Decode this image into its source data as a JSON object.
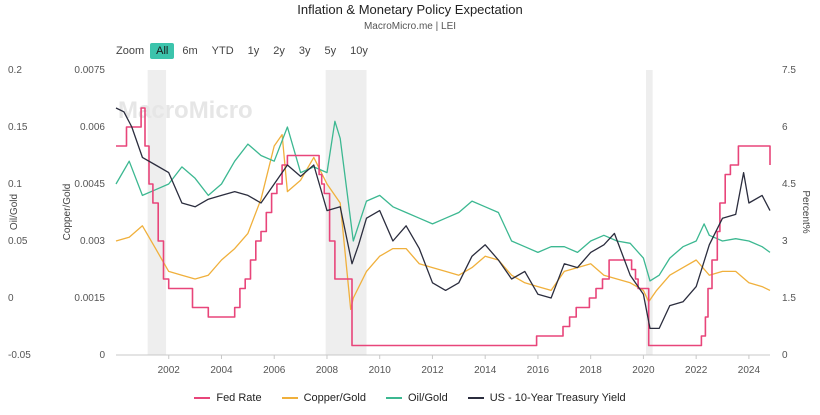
{
  "header": {
    "title": "Inflation & Monetary Policy Expectation",
    "subtitle": "MacroMicro.me | LEI"
  },
  "watermark": "MacroMicro",
  "zoom": {
    "label": "Zoom",
    "buttons": [
      "All",
      "6m",
      "YTD",
      "1y",
      "2y",
      "3y",
      "5y",
      "10y"
    ],
    "active": "All"
  },
  "colors": {
    "fed": "#e8457a",
    "copper": "#f0b03c",
    "oil": "#3cb891",
    "tsy": "#2b2d3e",
    "band": "#eeeeee",
    "accent": "#3cc4ac"
  },
  "chart_data": {
    "type": "line",
    "xlim": [
      2000.0,
      2024.8
    ],
    "x_ticks": [
      "2002",
      "2004",
      "2006",
      "2008",
      "2010",
      "2012",
      "2014",
      "2016",
      "2018",
      "2020",
      "2022",
      "2024"
    ],
    "recessions": [
      [
        2001.2,
        2001.9
      ],
      [
        2007.95,
        2009.5
      ],
      [
        2020.1,
        2020.35
      ]
    ],
    "axes": {
      "oil": {
        "label": "Oil/Gold",
        "ylim": [
          -0.05,
          0.2
        ],
        "ticks": [
          "0.2",
          "0.15",
          "0.1",
          "0.05",
          "0",
          "-0.05"
        ]
      },
      "copper": {
        "label": "Copper/Gold",
        "ylim": [
          0,
          0.0075
        ],
        "ticks": [
          "0.0075",
          "0.006",
          "0.0045",
          "0.003",
          "0.0015",
          "0"
        ]
      },
      "rate": {
        "label": "Percent%",
        "ylim": [
          0,
          7.5
        ],
        "ticks": [
          "7.5",
          "6",
          "4.5",
          "3",
          "1.5",
          "0"
        ]
      }
    },
    "series": [
      {
        "name": "Fed Rate",
        "axis": "rate",
        "color": "#e8457a",
        "step": true,
        "x": [
          2000.0,
          2000.4,
          2000.95,
          2001.1,
          2001.25,
          2001.4,
          2001.6,
          2001.8,
          2002.0,
          2002.9,
          2003.5,
          2004.5,
          2004.7,
          2004.9,
          2005.1,
          2005.3,
          2005.5,
          2005.7,
          2005.9,
          2006.1,
          2006.3,
          2006.5,
          2007.7,
          2007.8,
          2007.9,
          2008.1,
          2008.3,
          2008.95,
          2015.95,
          2016.95,
          2017.2,
          2017.45,
          2017.95,
          2018.2,
          2018.45,
          2018.7,
          2019.55,
          2019.7,
          2019.8,
          2020.2,
          2022.2,
          2022.35,
          2022.45,
          2022.6,
          2022.8,
          2022.9,
          2023.1,
          2023.3,
          2023.6,
          2024.7,
          2024.8
        ],
        "y": [
          5.5,
          6.0,
          6.5,
          5.5,
          4.5,
          4.0,
          3.0,
          2.0,
          1.75,
          1.25,
          1.0,
          1.25,
          1.75,
          2.0,
          2.5,
          3.0,
          3.25,
          3.75,
          4.25,
          4.5,
          5.0,
          5.25,
          4.75,
          4.5,
          4.25,
          3.0,
          2.0,
          0.25,
          0.5,
          0.75,
          1.0,
          1.25,
          1.5,
          1.75,
          2.0,
          2.5,
          2.25,
          2.0,
          1.75,
          0.25,
          0.5,
          1.0,
          1.75,
          2.5,
          3.25,
          4.0,
          4.75,
          5.0,
          5.5,
          5.5,
          5.0
        ]
      },
      {
        "name": "Copper/Gold",
        "axis": "copper",
        "color": "#f0b03c",
        "x": [
          2000.0,
          2000.5,
          2001.0,
          2001.5,
          2002.0,
          2002.5,
          2003.0,
          2003.5,
          2004.0,
          2004.5,
          2005.0,
          2005.5,
          2006.0,
          2006.3,
          2006.5,
          2007.0,
          2007.5,
          2008.0,
          2008.5,
          2008.9,
          2009.0,
          2009.5,
          2010.0,
          2010.5,
          2011.0,
          2011.5,
          2012.0,
          2012.5,
          2013.0,
          2013.5,
          2014.0,
          2014.5,
          2015.0,
          2015.5,
          2016.0,
          2016.5,
          2017.0,
          2017.5,
          2018.0,
          2018.5,
          2019.0,
          2019.5,
          2020.0,
          2020.2,
          2020.5,
          2021.0,
          2021.5,
          2022.0,
          2022.5,
          2023.0,
          2023.5,
          2024.0,
          2024.5,
          2024.8
        ],
        "y": [
          0.003,
          0.0031,
          0.0034,
          0.0028,
          0.0022,
          0.0021,
          0.002,
          0.0021,
          0.0025,
          0.0028,
          0.0032,
          0.0041,
          0.0055,
          0.0058,
          0.0043,
          0.0046,
          0.0052,
          0.0045,
          0.004,
          0.0012,
          0.0015,
          0.0022,
          0.0026,
          0.0028,
          0.0028,
          0.0024,
          0.0023,
          0.0022,
          0.0021,
          0.0023,
          0.0026,
          0.0025,
          0.0021,
          0.0019,
          0.0018,
          0.0017,
          0.0022,
          0.0023,
          0.0024,
          0.0021,
          0.002,
          0.0019,
          0.0017,
          0.0014,
          0.0017,
          0.0021,
          0.0023,
          0.0025,
          0.0021,
          0.0022,
          0.0022,
          0.0019,
          0.0018,
          0.0017
        ]
      },
      {
        "name": "Oil/Gold",
        "axis": "oil",
        "color": "#3cb891",
        "x": [
          2000.0,
          2000.5,
          2001.0,
          2001.5,
          2002.0,
          2002.5,
          2003.0,
          2003.5,
          2004.0,
          2004.5,
          2005.0,
          2005.5,
          2006.0,
          2006.5,
          2007.0,
          2007.5,
          2008.0,
          2008.3,
          2008.5,
          2009.0,
          2009.5,
          2010.0,
          2010.5,
          2011.0,
          2011.5,
          2012.0,
          2012.5,
          2013.0,
          2013.5,
          2014.0,
          2014.5,
          2015.0,
          2015.5,
          2016.0,
          2016.5,
          2017.0,
          2017.5,
          2018.0,
          2018.5,
          2019.0,
          2019.5,
          2020.0,
          2020.25,
          2020.6,
          2021.0,
          2021.5,
          2022.0,
          2022.3,
          2022.5,
          2023.0,
          2023.5,
          2024.0,
          2024.5,
          2024.8
        ],
        "y": [
          0.1,
          0.12,
          0.09,
          0.095,
          0.1,
          0.115,
          0.105,
          0.09,
          0.1,
          0.12,
          0.135,
          0.125,
          0.12,
          0.15,
          0.11,
          0.115,
          0.11,
          0.155,
          0.14,
          0.05,
          0.085,
          0.09,
          0.08,
          0.075,
          0.07,
          0.065,
          0.07,
          0.075,
          0.085,
          0.08,
          0.075,
          0.05,
          0.045,
          0.04,
          0.045,
          0.045,
          0.04,
          0.05,
          0.055,
          0.05,
          0.048,
          0.035,
          0.015,
          0.02,
          0.035,
          0.045,
          0.05,
          0.065,
          0.055,
          0.05,
          0.052,
          0.05,
          0.045,
          0.04
        ]
      },
      {
        "name": "US - 10-Year Treasury Yield",
        "axis": "rate",
        "color": "#2b2d3e",
        "x": [
          2000.0,
          2000.3,
          2000.6,
          2001.0,
          2001.5,
          2002.0,
          2002.5,
          2003.0,
          2003.5,
          2004.0,
          2004.5,
          2005.0,
          2005.5,
          2006.0,
          2006.5,
          2007.0,
          2007.5,
          2008.0,
          2008.5,
          2008.95,
          2009.2,
          2009.5,
          2010.0,
          2010.5,
          2011.0,
          2011.5,
          2012.0,
          2012.5,
          2013.0,
          2013.5,
          2014.0,
          2014.5,
          2015.0,
          2015.5,
          2016.0,
          2016.5,
          2017.0,
          2017.5,
          2018.0,
          2018.5,
          2018.9,
          2019.5,
          2020.0,
          2020.25,
          2020.6,
          2021.0,
          2021.5,
          2022.0,
          2022.5,
          2023.0,
          2023.5,
          2023.8,
          2024.0,
          2024.5,
          2024.8
        ],
        "y": [
          6.5,
          6.4,
          6.0,
          5.2,
          5.0,
          4.8,
          4.0,
          3.9,
          4.1,
          4.2,
          4.3,
          4.2,
          4.0,
          4.5,
          5.0,
          4.7,
          5.0,
          3.8,
          3.9,
          2.4,
          2.9,
          3.6,
          3.8,
          3.0,
          3.4,
          2.8,
          1.9,
          1.7,
          1.9,
          2.6,
          2.9,
          2.5,
          2.0,
          2.2,
          1.6,
          1.5,
          2.4,
          2.3,
          2.7,
          2.9,
          3.2,
          2.1,
          1.6,
          0.7,
          0.7,
          1.3,
          1.4,
          1.8,
          2.9,
          3.6,
          3.7,
          4.8,
          4.0,
          4.2,
          3.8
        ]
      }
    ]
  },
  "legend": {
    "items": [
      {
        "label": "Fed Rate",
        "color": "#e8457a"
      },
      {
        "label": "Copper/Gold",
        "color": "#f0b03c"
      },
      {
        "label": "Oil/Gold",
        "color": "#3cb891"
      },
      {
        "label": "US - 10-Year Treasury Yield",
        "color": "#2b2d3e"
      }
    ]
  }
}
